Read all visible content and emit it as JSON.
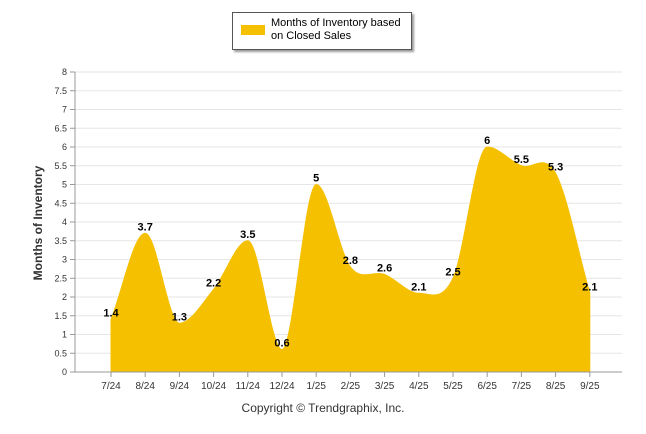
{
  "chart_data": {
    "type": "area",
    "title": "",
    "xlabel": "",
    "ylabel": "Months of Inventory",
    "categories": [
      "7/24",
      "8/24",
      "9/24",
      "10/24",
      "11/24",
      "12/24",
      "1/25",
      "2/25",
      "3/25",
      "4/25",
      "5/25",
      "6/25",
      "7/25",
      "8/25",
      "9/25"
    ],
    "series": [
      {
        "name": "Months of Inventory based on Closed Sales",
        "values": [
          1.4,
          3.7,
          1.3,
          2.2,
          3.5,
          0.6,
          5,
          2.8,
          2.6,
          2.1,
          2.5,
          6,
          5.5,
          5.3,
          2.1
        ],
        "color": "#F5C000"
      }
    ],
    "ylim": [
      0,
      8
    ],
    "yticks": [
      "0",
      "0.5",
      "1",
      "1.5",
      "2",
      "2.5",
      "3",
      "3.5",
      "4",
      "4.5",
      "5",
      "5.5",
      "6",
      "6.5",
      "7",
      "7.5",
      "8"
    ],
    "grid": true,
    "legend_position": "top-center"
  },
  "legend": {
    "label": "Months of Inventory based on Closed Sales"
  },
  "footer": {
    "copyright": "Copyright © Trendgraphix, Inc."
  }
}
